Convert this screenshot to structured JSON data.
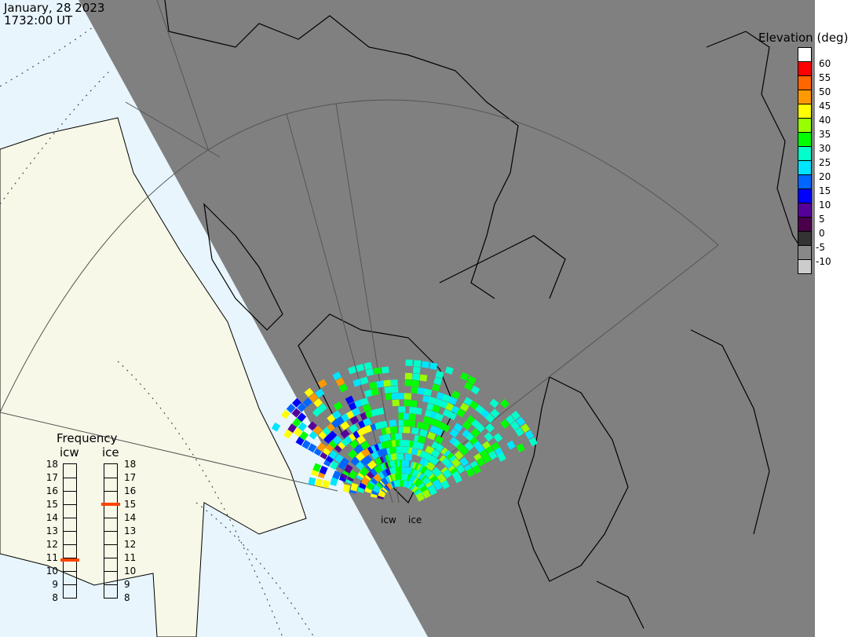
{
  "header": {
    "date": "January, 28 2023",
    "time": "1732:00 UT"
  },
  "colors": {
    "ocean": "#e8f5fd",
    "land": "#f8f8e8",
    "night": "#808080",
    "coast": "#000000",
    "fan": "#555555"
  },
  "elevation_scale": {
    "title": "Elevation (deg)",
    "labels": [
      "60",
      "55",
      "50",
      "45",
      "40",
      "35",
      "30",
      "25",
      "20",
      "15",
      "10",
      "5",
      "0",
      "-5",
      "-10"
    ],
    "colors": [
      "#ffffff",
      "#ff0000",
      "#ff6600",
      "#ff9900",
      "#ffff00",
      "#99ff00",
      "#00ff00",
      "#00ffcc",
      "#00e5ff",
      "#0066ff",
      "#0000ff",
      "#550099",
      "#4b004b",
      "#333333",
      "#888888",
      "#cccccc"
    ]
  },
  "frequency_panel": {
    "title": "Frequency",
    "radars": [
      {
        "name": "icw",
        "value_mhz": 10.8
      },
      {
        "name": "ice",
        "value_mhz": 15.0
      }
    ],
    "ticks": [
      "18",
      "17",
      "16",
      "15",
      "14",
      "13",
      "12",
      "11",
      "10",
      "9",
      "8"
    ],
    "marker_color": "#ff4400"
  },
  "radar_labels": [
    "icw",
    "ice"
  ]
}
